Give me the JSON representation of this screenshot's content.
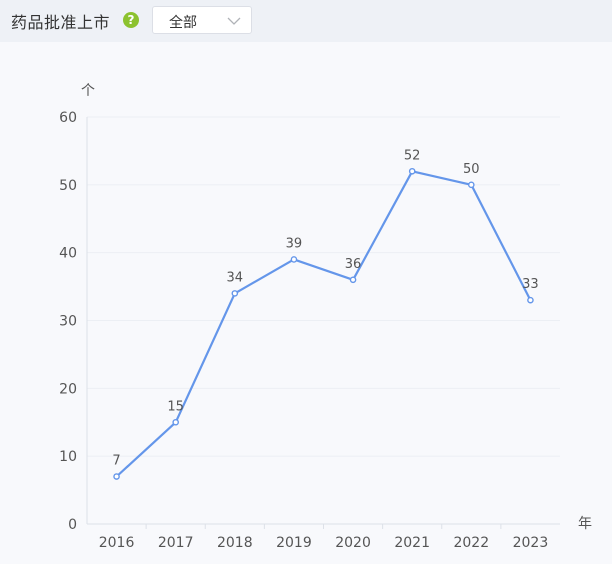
{
  "header": {
    "title": "药品批准上市",
    "help_icon": "question-circle-icon",
    "filter": {
      "selected": "全部",
      "icon": "chevron-down-icon"
    }
  },
  "colors": {
    "line": "#6496ea",
    "help": "#8cc22f",
    "grid": "#eceff4"
  },
  "chart_data": {
    "type": "line",
    "x": [
      "2016",
      "2017",
      "2018",
      "2019",
      "2020",
      "2021",
      "2022",
      "2023"
    ],
    "series": [
      {
        "values": [
          7,
          15,
          34,
          39,
          36,
          52,
          50,
          33
        ]
      }
    ],
    "xlabel": "年",
    "ylabel": "个",
    "ylim": [
      0,
      60
    ],
    "yticks": [
      0,
      10,
      20,
      30,
      40,
      50,
      60
    ],
    "grid": true,
    "data_labels": true
  }
}
